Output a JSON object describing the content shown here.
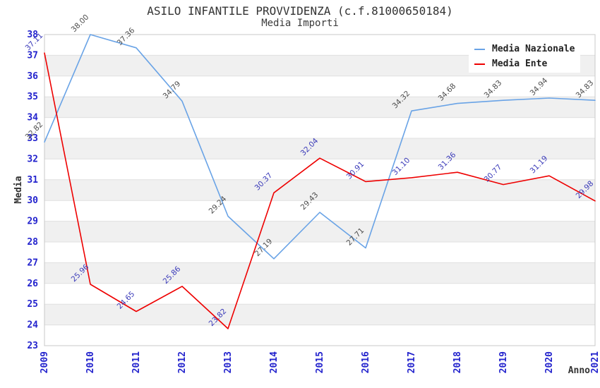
{
  "chart_data": {
    "type": "line",
    "title": "ASILO INFANTILE PROVVIDENZA (c.f.81000650184)",
    "subtitle": "Media Importi",
    "xlabel": "Anno",
    "ylabel": "Media",
    "x": [
      "2009",
      "2010",
      "2011",
      "2012",
      "2013",
      "2014",
      "2015",
      "2016",
      "2017",
      "2018",
      "2019",
      "2020",
      "2021"
    ],
    "ylim": [
      23,
      38
    ],
    "ytick_step": 1,
    "yticks": [
      "38",
      "37",
      "36",
      "35",
      "34",
      "33",
      "32",
      "31",
      "30",
      "29",
      "28",
      "27",
      "26",
      "25",
      "24",
      "23"
    ],
    "grid": "horizontal-bands-alternating",
    "legend_position": "top-right-inside",
    "series": [
      {
        "name": "Media Nazionale",
        "color": "#69a3e6",
        "label_color": "#4d4d4d",
        "values": [
          32.82,
          38.0,
          37.36,
          34.79,
          29.24,
          27.19,
          29.43,
          27.71,
          34.32,
          34.68,
          34.83,
          34.94,
          34.83
        ],
        "labels": [
          "32.82",
          "38.00",
          "37.36",
          "34.79",
          "29.24",
          "27.19",
          "29.43",
          "27.71",
          "34.32",
          "34.68",
          "34.83",
          "34.94",
          "34.83"
        ]
      },
      {
        "name": "Media Ente",
        "color": "#ee0000",
        "label_color": "#3a3ab9",
        "values": [
          37.11,
          25.96,
          24.65,
          25.86,
          23.82,
          30.37,
          32.04,
          30.91,
          31.1,
          31.36,
          30.77,
          31.19,
          29.98
        ],
        "labels": [
          "37.11",
          "25.96",
          "24.65",
          "25.86",
          "23.82",
          "30.37",
          "32.04",
          "30.91",
          "31.10",
          "31.36",
          "30.77",
          "31.19",
          "29.98"
        ]
      }
    ],
    "colors": {
      "axis_tick_label": "#2323cd",
      "axis_title": "#333333",
      "band_gray": "#f0f0f0",
      "gridline": "#e0e0e0",
      "plot_border": "#c8c8c8",
      "background": "#ffffff"
    }
  }
}
